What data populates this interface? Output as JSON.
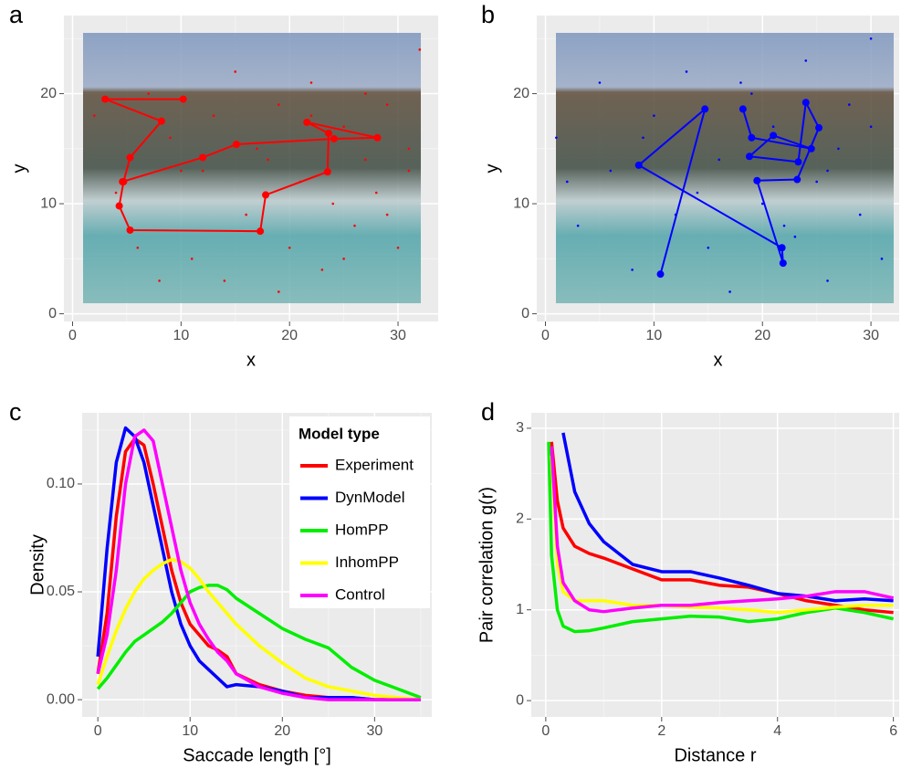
{
  "chart_data": [
    {
      "type": "scatter",
      "panel_label": "a",
      "x_label": "x",
      "y_label": "y",
      "color": "#ff0000",
      "xlim": [
        -0.8,
        33.7
      ],
      "ylim": [
        -0.7,
        27.1
      ],
      "xticks": [
        0,
        10,
        20,
        30
      ],
      "yticks": [
        0,
        10,
        20
      ],
      "grid": true,
      "points": {
        "x": [
          2,
          4,
          6,
          7,
          9,
          11,
          12,
          13,
          14,
          16,
          18,
          19,
          20,
          21,
          22,
          23,
          24,
          25,
          26,
          27,
          28,
          29,
          30,
          31,
          32,
          8,
          15,
          19,
          25,
          29,
          10,
          17,
          22,
          27,
          31
        ],
        "y": [
          18,
          11,
          6,
          20,
          16,
          5,
          13,
          18,
          3,
          9,
          14,
          19,
          6,
          12,
          21,
          4,
          10,
          17,
          8,
          14,
          11,
          19,
          6,
          13,
          24,
          3,
          22,
          2,
          5,
          9,
          13,
          15,
          18,
          20,
          15
        ]
      },
      "scanpath": {
        "x": [
          10.2,
          3.0,
          8.2,
          5.3,
          4.7,
          4.3,
          5.3,
          17.3,
          17.8,
          23.5,
          23.6,
          21.6,
          28.1,
          24.1,
          15.1,
          12.0,
          4.6
        ],
        "y": [
          19.5,
          19.5,
          17.5,
          14.2,
          12.0,
          9.8,
          7.6,
          7.5,
          10.8,
          12.9,
          16.4,
          17.4,
          16.0,
          15.9,
          15.4,
          14.2,
          12.0
        ]
      }
    },
    {
      "type": "scatter",
      "panel_label": "b",
      "x_label": "x",
      "y_label": "y",
      "color": "#0000ff",
      "xlim": [
        -0.8,
        32.6
      ],
      "ylim": [
        -0.7,
        27.1
      ],
      "xticks": [
        0,
        10,
        20,
        30
      ],
      "yticks": [
        0,
        10,
        20
      ],
      "grid": true,
      "points": {
        "x": [
          1,
          3,
          5,
          6,
          8,
          10,
          12,
          13,
          15,
          16,
          17,
          19,
          20,
          21,
          23,
          24,
          25,
          26,
          27,
          28,
          29,
          30,
          31,
          2,
          9,
          14,
          18,
          22,
          26,
          30
        ],
        "y": [
          16,
          8,
          21,
          13,
          4,
          18,
          9,
          22,
          6,
          14,
          2,
          20,
          10,
          17,
          7,
          23,
          12,
          3,
          15,
          19,
          9,
          25,
          5,
          12,
          16,
          11,
          21,
          8,
          13,
          17
        ]
      },
      "scanpath": {
        "x": [
          10.6,
          14.7,
          8.6,
          21.8,
          21.9,
          19.5,
          23.2,
          25.2,
          24.0,
          23.3,
          18.8,
          21.0,
          24.5,
          19.0,
          18.2
        ],
        "y": [
          3.6,
          18.6,
          13.5,
          6.0,
          4.6,
          12.1,
          12.2,
          16.9,
          19.2,
          13.8,
          14.3,
          16.2,
          15.0,
          16.0,
          18.6
        ]
      }
    },
    {
      "type": "line",
      "panel_label": "c",
      "x_label": "Saccade length  [°]",
      "y_label": "Density",
      "legend_title": "Model type",
      "legend": "top-right",
      "xlim": [
        -1.7,
        36.2
      ],
      "ylim": [
        -0.008,
        0.133
      ],
      "xticks": [
        0,
        10,
        20,
        30
      ],
      "yticks": [
        {
          "value": 0,
          "label": "0.00"
        },
        {
          "value": 0.05,
          "label": "0.05"
        },
        {
          "value": 0.1,
          "label": "0.10"
        }
      ],
      "grid": true,
      "x": [
        0,
        1,
        2,
        3,
        4,
        5,
        6,
        7,
        8,
        9,
        10,
        11,
        12,
        13,
        14,
        15,
        17.5,
        20,
        22.5,
        25,
        27.5,
        30,
        32.5,
        35
      ],
      "series": [
        {
          "name": "Experiment",
          "color": "#ff0000",
          "values": [
            0.012,
            0.04,
            0.085,
            0.115,
            0.121,
            0.118,
            0.1,
            0.08,
            0.06,
            0.045,
            0.035,
            0.03,
            0.025,
            0.023,
            0.02,
            0.012,
            0.007,
            0.004,
            0.002,
            0.001,
            0.001,
            0,
            0,
            0
          ]
        },
        {
          "name": "DynModel",
          "color": "#0000ff",
          "values": [
            0.02,
            0.07,
            0.11,
            0.126,
            0.122,
            0.11,
            0.09,
            0.07,
            0.05,
            0.035,
            0.025,
            0.018,
            0.014,
            0.01,
            0.006,
            0.007,
            0.006,
            0.004,
            0.001,
            0.001,
            0.001,
            0,
            0,
            0
          ]
        },
        {
          "name": "HomPP",
          "color": "#00ee00",
          "values": [
            0.005,
            0.01,
            0.016,
            0.022,
            0.027,
            0.03,
            0.033,
            0.036,
            0.04,
            0.045,
            0.05,
            0.052,
            0.053,
            0.053,
            0.051,
            0.047,
            0.04,
            0.033,
            0.028,
            0.024,
            0.015,
            0.009,
            0.005,
            0.001
          ]
        },
        {
          "name": "InhomPP",
          "color": "#ffff00",
          "values": [
            0.007,
            0.02,
            0.032,
            0.042,
            0.05,
            0.056,
            0.06,
            0.063,
            0.065,
            0.064,
            0.061,
            0.056,
            0.05,
            0.045,
            0.04,
            0.035,
            0.025,
            0.017,
            0.01,
            0.006,
            0.004,
            0.002,
            0.001,
            0
          ]
        },
        {
          "name": "Control",
          "color": "#ff00ff",
          "values": [
            0.012,
            0.03,
            0.06,
            0.1,
            0.122,
            0.125,
            0.12,
            0.1,
            0.08,
            0.06,
            0.045,
            0.035,
            0.028,
            0.022,
            0.018,
            0.012,
            0.006,
            0.003,
            0.001,
            0,
            0,
            0,
            0,
            0
          ]
        }
      ]
    },
    {
      "type": "line",
      "panel_label": "d",
      "x_label": "Distance  r",
      "y_label": "Pair correlation  g(r)",
      "xlim": [
        -0.25,
        6.1
      ],
      "ylim": [
        -0.18,
        3.17
      ],
      "xticks": [
        0,
        2,
        4,
        6
      ],
      "yticks": [
        0,
        1,
        2,
        3
      ],
      "grid": true,
      "x": [
        0.05,
        0.1,
        0.2,
        0.3,
        0.5,
        0.75,
        1,
        1.5,
        2,
        2.5,
        3,
        3.5,
        4,
        4.5,
        5,
        5.5,
        6
      ],
      "series": [
        {
          "color": "#ff0000",
          "values": [
            null,
            2.85,
            2.2,
            1.9,
            1.7,
            1.62,
            1.57,
            1.45,
            1.33,
            1.33,
            1.27,
            1.25,
            1.18,
            1.1,
            1.05,
            1.0,
            0.97
          ]
        },
        {
          "color": "#0000ff",
          "values": [
            null,
            null,
            null,
            2.95,
            2.3,
            1.95,
            1.75,
            1.5,
            1.42,
            1.42,
            1.35,
            1.27,
            1.18,
            1.15,
            1.1,
            1.12,
            1.1
          ]
        },
        {
          "color": "#00ee00",
          "values": [
            2.85,
            1.6,
            1.0,
            0.82,
            0.76,
            0.77,
            0.8,
            0.87,
            0.9,
            0.93,
            0.92,
            0.87,
            0.9,
            0.97,
            1.02,
            0.97,
            0.9
          ]
        },
        {
          "color": "#ffff00",
          "values": [
            null,
            2.7,
            1.5,
            1.2,
            1.1,
            1.1,
            1.1,
            1.05,
            1.05,
            1.03,
            1.02,
            1.0,
            0.97,
            1.0,
            1.03,
            1.05,
            1.05
          ]
        },
        {
          "color": "#ff00ff",
          "values": [
            null,
            2.8,
            1.7,
            1.3,
            1.1,
            1.0,
            0.98,
            1.02,
            1.05,
            1.05,
            1.08,
            1.1,
            1.12,
            1.15,
            1.2,
            1.2,
            1.13
          ]
        }
      ]
    }
  ]
}
